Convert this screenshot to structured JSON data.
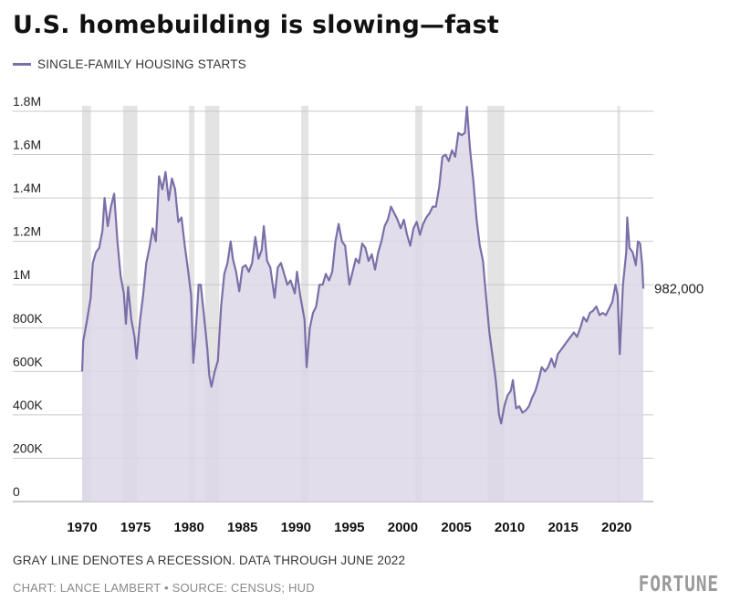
{
  "header": {
    "title": "U.S. homebuilding is slowing—fast"
  },
  "footer": {
    "note": "GRAY LINE DENOTES A RECESSION. DATA THROUGH JUNE 2022",
    "credit": "CHART: LANCE LAMBERT • SOURCE: CENSUS; HUD",
    "logo": "FORTUNE"
  },
  "colors": {
    "line": "#7b6fa8",
    "fill": "#dcd7e8",
    "recession": "#e3e3e3",
    "grid": "#c9c9c9"
  },
  "chart_data": {
    "type": "area",
    "title": "U.S. homebuilding is slowing—fast",
    "series": [
      {
        "name": "SINGLE-FAMILY HOUSING STARTS",
        "points": [
          [
            1970.0,
            600000
          ],
          [
            1970.1,
            740000
          ],
          [
            1970.4,
            820000
          ],
          [
            1970.8,
            940000
          ],
          [
            1971.0,
            1100000
          ],
          [
            1971.3,
            1150000
          ],
          [
            1971.6,
            1170000
          ],
          [
            1971.9,
            1250000
          ],
          [
            1972.1,
            1400000
          ],
          [
            1972.4,
            1270000
          ],
          [
            1972.7,
            1360000
          ],
          [
            1973.0,
            1420000
          ],
          [
            1973.3,
            1200000
          ],
          [
            1973.6,
            1040000
          ],
          [
            1973.9,
            960000
          ],
          [
            1974.1,
            820000
          ],
          [
            1974.3,
            990000
          ],
          [
            1974.6,
            840000
          ],
          [
            1974.9,
            760000
          ],
          [
            1975.1,
            660000
          ],
          [
            1975.4,
            830000
          ],
          [
            1975.7,
            950000
          ],
          [
            1976.0,
            1100000
          ],
          [
            1976.3,
            1170000
          ],
          [
            1976.6,
            1260000
          ],
          [
            1976.9,
            1200000
          ],
          [
            1977.2,
            1500000
          ],
          [
            1977.5,
            1440000
          ],
          [
            1977.8,
            1520000
          ],
          [
            1978.1,
            1390000
          ],
          [
            1978.4,
            1490000
          ],
          [
            1978.7,
            1440000
          ],
          [
            1979.0,
            1290000
          ],
          [
            1979.3,
            1310000
          ],
          [
            1979.6,
            1180000
          ],
          [
            1979.9,
            1070000
          ],
          [
            1980.2,
            950000
          ],
          [
            1980.4,
            640000
          ],
          [
            1980.6,
            760000
          ],
          [
            1980.9,
            1000000
          ],
          [
            1981.1,
            1000000
          ],
          [
            1981.4,
            860000
          ],
          [
            1981.7,
            710000
          ],
          [
            1981.9,
            580000
          ],
          [
            1982.1,
            530000
          ],
          [
            1982.4,
            600000
          ],
          [
            1982.7,
            650000
          ],
          [
            1983.0,
            900000
          ],
          [
            1983.3,
            1050000
          ],
          [
            1983.6,
            1100000
          ],
          [
            1983.9,
            1200000
          ],
          [
            1984.1,
            1120000
          ],
          [
            1984.4,
            1060000
          ],
          [
            1984.7,
            970000
          ],
          [
            1985.0,
            1080000
          ],
          [
            1985.3,
            1090000
          ],
          [
            1985.6,
            1060000
          ],
          [
            1985.9,
            1100000
          ],
          [
            1986.2,
            1220000
          ],
          [
            1986.5,
            1120000
          ],
          [
            1986.8,
            1160000
          ],
          [
            1987.0,
            1270000
          ],
          [
            1987.3,
            1110000
          ],
          [
            1987.6,
            1080000
          ],
          [
            1988.0,
            940000
          ],
          [
            1988.3,
            1080000
          ],
          [
            1988.6,
            1100000
          ],
          [
            1988.9,
            1050000
          ],
          [
            1989.2,
            1000000
          ],
          [
            1989.5,
            1020000
          ],
          [
            1989.9,
            960000
          ],
          [
            1990.1,
            1060000
          ],
          [
            1990.4,
            950000
          ],
          [
            1990.8,
            840000
          ],
          [
            1991.0,
            620000
          ],
          [
            1991.3,
            800000
          ],
          [
            1991.6,
            870000
          ],
          [
            1991.9,
            900000
          ],
          [
            1992.2,
            1000000
          ],
          [
            1992.5,
            1000000
          ],
          [
            1992.8,
            1050000
          ],
          [
            1993.1,
            1020000
          ],
          [
            1993.4,
            1060000
          ],
          [
            1993.7,
            1200000
          ],
          [
            1994.0,
            1280000
          ],
          [
            1994.3,
            1200000
          ],
          [
            1994.6,
            1180000
          ],
          [
            1995.0,
            1000000
          ],
          [
            1995.3,
            1060000
          ],
          [
            1995.6,
            1120000
          ],
          [
            1995.9,
            1100000
          ],
          [
            1996.2,
            1190000
          ],
          [
            1996.5,
            1170000
          ],
          [
            1996.8,
            1110000
          ],
          [
            1997.1,
            1140000
          ],
          [
            1997.4,
            1070000
          ],
          [
            1997.7,
            1150000
          ],
          [
            1998.0,
            1200000
          ],
          [
            1998.3,
            1270000
          ],
          [
            1998.6,
            1300000
          ],
          [
            1998.9,
            1360000
          ],
          [
            1999.2,
            1330000
          ],
          [
            1999.5,
            1300000
          ],
          [
            1999.8,
            1260000
          ],
          [
            2000.1,
            1300000
          ],
          [
            2000.4,
            1230000
          ],
          [
            2000.7,
            1180000
          ],
          [
            2001.0,
            1260000
          ],
          [
            2001.3,
            1290000
          ],
          [
            2001.6,
            1230000
          ],
          [
            2001.9,
            1280000
          ],
          [
            2002.2,
            1310000
          ],
          [
            2002.5,
            1330000
          ],
          [
            2002.8,
            1360000
          ],
          [
            2003.1,
            1360000
          ],
          [
            2003.4,
            1450000
          ],
          [
            2003.7,
            1590000
          ],
          [
            2004.0,
            1600000
          ],
          [
            2004.3,
            1570000
          ],
          [
            2004.6,
            1620000
          ],
          [
            2004.9,
            1590000
          ],
          [
            2005.2,
            1700000
          ],
          [
            2005.5,
            1690000
          ],
          [
            2005.8,
            1700000
          ],
          [
            2006.0,
            1820000
          ],
          [
            2006.3,
            1620000
          ],
          [
            2006.6,
            1480000
          ],
          [
            2006.9,
            1300000
          ],
          [
            2007.2,
            1180000
          ],
          [
            2007.5,
            1110000
          ],
          [
            2007.8,
            940000
          ],
          [
            2008.1,
            780000
          ],
          [
            2008.4,
            670000
          ],
          [
            2008.7,
            560000
          ],
          [
            2009.0,
            400000
          ],
          [
            2009.2,
            360000
          ],
          [
            2009.5,
            440000
          ],
          [
            2009.8,
            490000
          ],
          [
            2010.1,
            510000
          ],
          [
            2010.3,
            560000
          ],
          [
            2010.6,
            430000
          ],
          [
            2010.9,
            440000
          ],
          [
            2011.2,
            410000
          ],
          [
            2011.5,
            420000
          ],
          [
            2011.8,
            440000
          ],
          [
            2012.1,
            480000
          ],
          [
            2012.4,
            510000
          ],
          [
            2012.7,
            560000
          ],
          [
            2013.0,
            620000
          ],
          [
            2013.3,
            600000
          ],
          [
            2013.6,
            620000
          ],
          [
            2013.9,
            660000
          ],
          [
            2014.2,
            620000
          ],
          [
            2014.5,
            680000
          ],
          [
            2014.8,
            700000
          ],
          [
            2015.1,
            720000
          ],
          [
            2015.4,
            740000
          ],
          [
            2015.7,
            760000
          ],
          [
            2016.0,
            780000
          ],
          [
            2016.3,
            760000
          ],
          [
            2016.6,
            800000
          ],
          [
            2016.9,
            850000
          ],
          [
            2017.2,
            830000
          ],
          [
            2017.5,
            870000
          ],
          [
            2017.8,
            880000
          ],
          [
            2018.1,
            900000
          ],
          [
            2018.4,
            860000
          ],
          [
            2018.7,
            870000
          ],
          [
            2019.0,
            860000
          ],
          [
            2019.3,
            890000
          ],
          [
            2019.6,
            920000
          ],
          [
            2019.9,
            1000000
          ],
          [
            2020.1,
            950000
          ],
          [
            2020.3,
            680000
          ],
          [
            2020.6,
            1000000
          ],
          [
            2020.9,
            1150000
          ],
          [
            2021.0,
            1310000
          ],
          [
            2021.2,
            1170000
          ],
          [
            2021.5,
            1150000
          ],
          [
            2021.8,
            1090000
          ],
          [
            2022.0,
            1200000
          ],
          [
            2022.2,
            1190000
          ],
          [
            2022.4,
            1090000
          ],
          [
            2022.5,
            982000
          ]
        ]
      }
    ],
    "recessions": [
      [
        1969.92,
        1970.83
      ],
      [
        1973.83,
        1975.17
      ],
      [
        1980.0,
        1980.5
      ],
      [
        1981.5,
        1982.83
      ],
      [
        1990.5,
        1991.17
      ],
      [
        2001.17,
        2001.83
      ],
      [
        2007.92,
        2009.5
      ],
      [
        2020.08,
        2020.33
      ]
    ],
    "x_ticks": [
      "1970",
      "1975",
      "1980",
      "1985",
      "1990",
      "1995",
      "2000",
      "2005",
      "2010",
      "2015",
      "2020"
    ],
    "y_ticks": [
      {
        "value": 0,
        "label": "0"
      },
      {
        "value": 200000,
        "label": "200K"
      },
      {
        "value": 400000,
        "label": "400K"
      },
      {
        "value": 600000,
        "label": "600K"
      },
      {
        "value": 800000,
        "label": "800K"
      },
      {
        "value": 1000000,
        "label": "1M"
      },
      {
        "value": 1200000,
        "label": "1.2M"
      },
      {
        "value": 1400000,
        "label": "1.4M"
      },
      {
        "value": 1600000,
        "label": "1.6M"
      },
      {
        "value": 1800000,
        "label": "1.8M"
      }
    ],
    "xlim": [
      1970,
      2022.5
    ],
    "ylim": [
      0,
      1800000
    ],
    "grid": true,
    "legend_position": "top-left",
    "annotation": {
      "x": 2022.5,
      "y": 982000,
      "label": "982,000"
    }
  }
}
